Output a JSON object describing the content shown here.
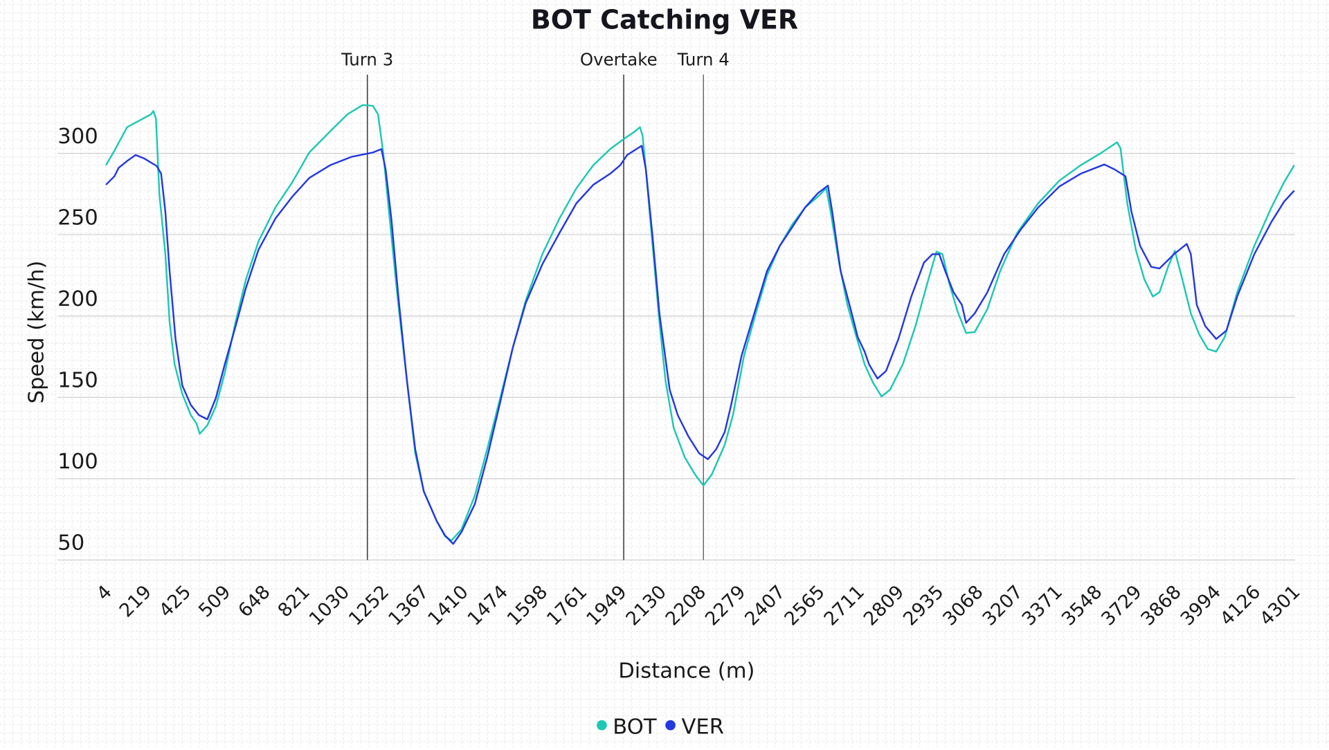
{
  "chart_data": {
    "type": "line",
    "title": "BOT Catching VER",
    "xlabel": "Distance (m)",
    "ylabel": "Speed (km/h)",
    "ylim": [
      50,
      348
    ],
    "yticks": [
      50,
      100,
      150,
      200,
      250,
      300
    ],
    "grid": true,
    "legend_position": "bottom",
    "x_tick_labels": [
      "4",
      "219",
      "425",
      "509",
      "648",
      "821",
      "1030",
      "1252",
      "1367",
      "1410",
      "1474",
      "1598",
      "1761",
      "1949",
      "2130",
      "2208",
      "2279",
      "2407",
      "2565",
      "2711",
      "2809",
      "2935",
      "3068",
      "3207",
      "3371",
      "3548",
      "3729",
      "3868",
      "3994",
      "4126",
      "4301"
    ],
    "markers": [
      {
        "label": "Turn 3",
        "x": 1163,
        "color": "#333333"
      },
      {
        "label": "Overtake",
        "x": 1962,
        "color": "#333333"
      },
      {
        "label": "Turn 4",
        "x": 2214,
        "color": "#666666"
      }
    ],
    "series": [
      {
        "name": "BOT",
        "color": "#1cc8b4",
        "points": [
          [
            4,
            292.7
          ],
          [
            50,
            301.6
          ],
          [
            119,
            316.1
          ],
          [
            247,
            324.0
          ],
          [
            260,
            326.0
          ],
          [
            273,
            321.4
          ],
          [
            291,
            274.5
          ],
          [
            322,
            238.0
          ],
          [
            344,
            196.4
          ],
          [
            370,
            170.3
          ],
          [
            410,
            152.1
          ],
          [
            437,
            139.1
          ],
          [
            449,
            133.9
          ],
          [
            456,
            127.6
          ],
          [
            472,
            132.8
          ],
          [
            490,
            144.3
          ],
          [
            509,
            165.1
          ],
          [
            547,
            196.4
          ],
          [
            583,
            222.4
          ],
          [
            627,
            245.8
          ],
          [
            696,
            266.7
          ],
          [
            770,
            282.3
          ],
          [
            849,
            300.5
          ],
          [
            959,
            313.5
          ],
          [
            1052,
            324.0
          ],
          [
            1137,
            329.7
          ],
          [
            1194,
            329.2
          ],
          [
            1223,
            324.0
          ],
          [
            1252,
            300.5
          ],
          [
            1271,
            258.9
          ],
          [
            1296,
            206.8
          ],
          [
            1321,
            159.9
          ],
          [
            1345,
            115.6
          ],
          [
            1368,
            92.2
          ],
          [
            1382,
            74.0
          ],
          [
            1391,
            64.6
          ],
          [
            1398,
            62.0
          ],
          [
            1409,
            68.8
          ],
          [
            1430,
            89.6
          ],
          [
            1450,
            118.2
          ],
          [
            1471,
            149.5
          ],
          [
            1508,
            180.7
          ],
          [
            1548,
            209.4
          ],
          [
            1601,
            238.0
          ],
          [
            1671,
            259.9
          ],
          [
            1741,
            278.6
          ],
          [
            1818,
            292.7
          ],
          [
            1898,
            302.6
          ],
          [
            1963,
            308.9
          ],
          [
            2009,
            313.0
          ],
          [
            2036,
            316.1
          ],
          [
            2048,
            310.9
          ],
          [
            2063,
            290.1
          ],
          [
            2094,
            243.2
          ],
          [
            2125,
            196.4
          ],
          [
            2140,
            159.9
          ],
          [
            2156,
            131.3
          ],
          [
            2178,
            113.0
          ],
          [
            2198,
            102.6
          ],
          [
            2214,
            95.8
          ],
          [
            2229,
            102.6
          ],
          [
            2252,
            120.8
          ],
          [
            2267,
            139.1
          ],
          [
            2293,
            175.5
          ],
          [
            2331,
            201.6
          ],
          [
            2367,
            225.0
          ],
          [
            2409,
            243.2
          ],
          [
            2459,
            256.3
          ],
          [
            2510,
            266.7
          ],
          [
            2561,
            273.4
          ],
          [
            2592,
            278.6
          ],
          [
            2608,
            264.1
          ],
          [
            2639,
            232.8
          ],
          [
            2670,
            206.8
          ],
          [
            2701,
            188.5
          ],
          [
            2726,
            170.3
          ],
          [
            2747,
            158.9
          ],
          [
            2768,
            150.5
          ],
          [
            2789,
            154.7
          ],
          [
            2824,
            170.3
          ],
          [
            2864,
            193.8
          ],
          [
            2905,
            222.4
          ],
          [
            2931,
            239.6
          ],
          [
            2951,
            238.0
          ],
          [
            2974,
            219.8
          ],
          [
            3002,
            202.6
          ],
          [
            3030,
            189.6
          ],
          [
            3059,
            190.1
          ],
          [
            3103,
            204.2
          ],
          [
            3148,
            227.6
          ],
          [
            3207,
            251.0
          ],
          [
            3295,
            269.3
          ],
          [
            3384,
            283.3
          ],
          [
            3479,
            292.7
          ],
          [
            3574,
            300.5
          ],
          [
            3643,
            306.8
          ],
          [
            3659,
            303.1
          ],
          [
            3690,
            269.3
          ],
          [
            3729,
            240.6
          ],
          [
            3759,
            222.4
          ],
          [
            3789,
            212.0
          ],
          [
            3812,
            214.6
          ],
          [
            3842,
            230.2
          ],
          [
            3866,
            240.1
          ],
          [
            3890,
            222.4
          ],
          [
            3917,
            201.6
          ],
          [
            3944,
            188.5
          ],
          [
            3971,
            179.7
          ],
          [
            3998,
            178.1
          ],
          [
            4026,
            187.0
          ],
          [
            4068,
            214.6
          ],
          [
            4125,
            243.2
          ],
          [
            4200,
            266.7
          ],
          [
            4256,
            282.3
          ],
          [
            4301,
            292.7
          ]
        ]
      },
      {
        "name": "VER",
        "color": "#2438e0",
        "points": [
          [
            4,
            280.7
          ],
          [
            50,
            285.9
          ],
          [
            73,
            291.1
          ],
          [
            119,
            295.3
          ],
          [
            165,
            299.0
          ],
          [
            211,
            296.9
          ],
          [
            277,
            292.2
          ],
          [
            300,
            287.5
          ],
          [
            322,
            264.1
          ],
          [
            344,
            227.6
          ],
          [
            375,
            185.9
          ],
          [
            410,
            157.3
          ],
          [
            437,
            145.3
          ],
          [
            454,
            139.1
          ],
          [
            472,
            136.5
          ],
          [
            490,
            149.5
          ],
          [
            509,
            170.3
          ],
          [
            547,
            193.8
          ],
          [
            583,
            217.2
          ],
          [
            627,
            240.6
          ],
          [
            696,
            259.9
          ],
          [
            770,
            273.4
          ],
          [
            849,
            284.9
          ],
          [
            959,
            292.7
          ],
          [
            1076,
            297.9
          ],
          [
            1194,
            300.5
          ],
          [
            1242,
            302.6
          ],
          [
            1259,
            290.1
          ],
          [
            1276,
            258.9
          ],
          [
            1296,
            212.0
          ],
          [
            1321,
            159.9
          ],
          [
            1345,
            118.2
          ],
          [
            1368,
            92.2
          ],
          [
            1382,
            74.0
          ],
          [
            1391,
            65.1
          ],
          [
            1400,
            59.9
          ],
          [
            1409,
            67.2
          ],
          [
            1430,
            84.4
          ],
          [
            1450,
            113.0
          ],
          [
            1471,
            146.9
          ],
          [
            1508,
            180.7
          ],
          [
            1548,
            207.8
          ],
          [
            1601,
            231.8
          ],
          [
            1671,
            251.0
          ],
          [
            1741,
            269.3
          ],
          [
            1818,
            280.7
          ],
          [
            1898,
            287.5
          ],
          [
            1946,
            292.7
          ],
          [
            1978,
            299.0
          ],
          [
            2044,
            304.7
          ],
          [
            2063,
            290.1
          ],
          [
            2094,
            248.4
          ],
          [
            2125,
            201.6
          ],
          [
            2148,
            154.7
          ],
          [
            2164,
            139.1
          ],
          [
            2185,
            126.0
          ],
          [
            2206,
            115.6
          ],
          [
            2222,
            112.0
          ],
          [
            2237,
            118.2
          ],
          [
            2252,
            128.6
          ],
          [
            2263,
            144.3
          ],
          [
            2285,
            175.5
          ],
          [
            2326,
            201.6
          ],
          [
            2367,
            227.6
          ],
          [
            2409,
            243.2
          ],
          [
            2459,
            254.7
          ],
          [
            2510,
            266.7
          ],
          [
            2561,
            275.5
          ],
          [
            2598,
            280.2
          ],
          [
            2614,
            264.1
          ],
          [
            2645,
            227.6
          ],
          [
            2686,
            201.6
          ],
          [
            2708,
            187.0
          ],
          [
            2726,
            178.1
          ],
          [
            2737,
            170.3
          ],
          [
            2758,
            161.5
          ],
          [
            2779,
            166.2
          ],
          [
            2810,
            185.9
          ],
          [
            2851,
            212.0
          ],
          [
            2891,
            232.8
          ],
          [
            2918,
            238.0
          ],
          [
            2940,
            238.0
          ],
          [
            2960,
            227.6
          ],
          [
            2988,
            214.6
          ],
          [
            3016,
            206.8
          ],
          [
            3030,
            195.8
          ],
          [
            3059,
            201.6
          ],
          [
            3103,
            214.6
          ],
          [
            3162,
            238.0
          ],
          [
            3225,
            253.6
          ],
          [
            3295,
            266.7
          ],
          [
            3384,
            279.7
          ],
          [
            3479,
            287.5
          ],
          [
            3585,
            293.2
          ],
          [
            3632,
            290.1
          ],
          [
            3682,
            285.9
          ],
          [
            3709,
            264.1
          ],
          [
            3744,
            243.2
          ],
          [
            3783,
            230.2
          ],
          [
            3812,
            229.2
          ],
          [
            3863,
            238.0
          ],
          [
            3904,
            244.3
          ],
          [
            3917,
            238.0
          ],
          [
            3936,
            206.8
          ],
          [
            3963,
            193.8
          ],
          [
            3998,
            185.9
          ],
          [
            4032,
            191.1
          ],
          [
            4068,
            212.0
          ],
          [
            4125,
            238.0
          ],
          [
            4200,
            257.8
          ],
          [
            4256,
            270.3
          ],
          [
            4301,
            277.1
          ]
        ]
      }
    ]
  }
}
